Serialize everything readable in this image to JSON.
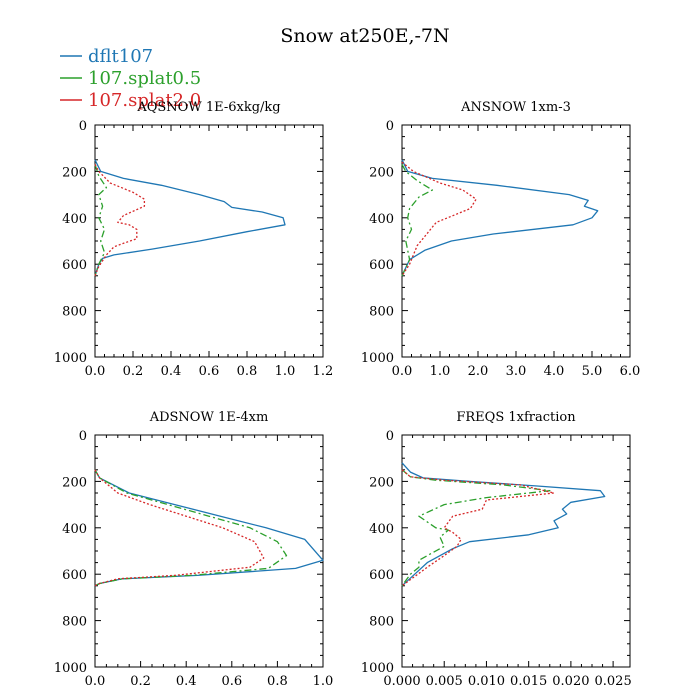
{
  "title": "Snow at250E,-7N",
  "legend": [
    {
      "label": "dflt107",
      "color": "#1f77b4",
      "dash": "solid"
    },
    {
      "label": "107.splat0.5",
      "color": "#2ca02c",
      "dash": "dashdot"
    },
    {
      "label": "107.splat2.0",
      "color": "#d62728",
      "dash": "dotted"
    }
  ],
  "chart_data": [
    {
      "type": "line",
      "title": "AQSNOW  1E-6xkg/kg",
      "xlim": [
        0,
        1.2
      ],
      "xticks": [
        "0.0",
        "0.2",
        "0.4",
        "0.6",
        "0.8",
        "1.0",
        "1.2"
      ],
      "ylim": [
        0,
        1000
      ],
      "yticks": [
        "0",
        "200",
        "400",
        "600",
        "800",
        "1000"
      ],
      "y_inverted": true,
      "series": [
        {
          "name": "dflt107",
          "x": [
            0,
            0.03,
            0.15,
            0.35,
            0.55,
            0.68,
            0.72,
            0.88,
            0.99,
            1.0,
            0.8,
            0.55,
            0.3,
            0.1,
            0.04,
            0.02,
            0
          ],
          "y": [
            150,
            200,
            230,
            260,
            300,
            330,
            355,
            375,
            400,
            430,
            460,
            500,
            535,
            560,
            575,
            600,
            650
          ]
        },
        {
          "name": "107.splat0.5",
          "x": [
            0,
            0.02,
            0.06,
            0.02,
            0.04,
            0.02,
            0.05,
            0.03,
            0.05,
            0.02,
            0
          ],
          "y": [
            170,
            220,
            270,
            300,
            350,
            400,
            450,
            500,
            550,
            600,
            650
          ]
        },
        {
          "name": "107.splat2.0",
          "x": [
            0,
            0.02,
            0.08,
            0.2,
            0.26,
            0.26,
            0.15,
            0.12,
            0.18,
            0.22,
            0.22,
            0.15,
            0.1,
            0.06,
            0.02,
            0
          ],
          "y": [
            170,
            200,
            250,
            290,
            320,
            350,
            390,
            420,
            430,
            450,
            490,
            510,
            525,
            560,
            610,
            650
          ]
        }
      ]
    },
    {
      "type": "line",
      "title": "ANSNOW  1xm-3",
      "xlim": [
        0,
        6
      ],
      "xticks": [
        "0.0",
        "1.0",
        "2.0",
        "3.0",
        "4.0",
        "5.0",
        "6.0"
      ],
      "ylim": [
        0,
        1000
      ],
      "yticks": [
        "0",
        "200",
        "400",
        "600",
        "800",
        "1000"
      ],
      "y_inverted": true,
      "series": [
        {
          "name": "dflt107",
          "x": [
            0,
            0.15,
            0.8,
            2.5,
            4.4,
            4.9,
            4.8,
            5.15,
            5.0,
            4.5,
            2.4,
            1.3,
            0.6,
            0.2,
            0
          ],
          "y": [
            150,
            200,
            230,
            260,
            300,
            325,
            350,
            370,
            400,
            430,
            470,
            500,
            540,
            580,
            650
          ]
        },
        {
          "name": "107.splat0.5",
          "x": [
            0,
            0.1,
            0.4,
            0.8,
            0.45,
            0.2,
            0.15,
            0.25,
            0.1,
            0.2,
            0
          ],
          "y": [
            170,
            200,
            240,
            280,
            310,
            360,
            400,
            450,
            500,
            580,
            650
          ]
        },
        {
          "name": "107.splat2.0",
          "x": [
            0,
            0.3,
            1.0,
            1.6,
            1.95,
            1.8,
            1.2,
            0.9,
            0.75,
            0.6,
            0.4,
            0.3,
            0.2,
            0
          ],
          "y": [
            160,
            200,
            250,
            280,
            320,
            360,
            400,
            420,
            450,
            480,
            520,
            560,
            600,
            650
          ]
        }
      ]
    },
    {
      "type": "line",
      "title": "ADSNOW  1E-4xm",
      "xlim": [
        0,
        1.0
      ],
      "xticks": [
        "0.0",
        "0.2",
        "0.4",
        "0.6",
        "0.8",
        "1.0"
      ],
      "ylim": [
        0,
        1000
      ],
      "yticks": [
        "0",
        "200",
        "400",
        "600",
        "800",
        "1000"
      ],
      "y_inverted": true,
      "series": [
        {
          "name": "dflt107",
          "x": [
            0,
            0.02,
            0.15,
            0.35,
            0.55,
            0.75,
            0.92,
            1.0,
            0.88,
            0.45,
            0.12,
            0.02,
            0
          ],
          "y": [
            150,
            185,
            250,
            300,
            350,
            400,
            450,
            540,
            575,
            605,
            620,
            640,
            650
          ]
        },
        {
          "name": "107.splat0.5",
          "x": [
            0,
            0.02,
            0.14,
            0.32,
            0.5,
            0.68,
            0.8,
            0.84,
            0.76,
            0.42,
            0.12,
            0.02,
            0
          ],
          "y": [
            150,
            185,
            250,
            300,
            350,
            400,
            460,
            520,
            575,
            605,
            620,
            640,
            650
          ]
        },
        {
          "name": "107.splat2.0",
          "x": [
            0,
            0.02,
            0.1,
            0.24,
            0.4,
            0.56,
            0.7,
            0.74,
            0.68,
            0.35,
            0.1,
            0.02,
            0
          ],
          "y": [
            150,
            185,
            250,
            300,
            350,
            400,
            460,
            530,
            570,
            605,
            620,
            640,
            650
          ]
        }
      ]
    },
    {
      "type": "line",
      "title": "FREQS  1xfraction",
      "xlim": [
        0,
        0.027
      ],
      "xticks": [
        "0.000",
        "0.005",
        "0.010",
        "0.015",
        "0.020",
        "0.025"
      ],
      "ylim": [
        0,
        1000
      ],
      "yticks": [
        "0",
        "200",
        "400",
        "600",
        "800",
        "1000"
      ],
      "y_inverted": true,
      "series": [
        {
          "name": "dflt107",
          "x": [
            0,
            0.001,
            0.0025,
            0.008,
            0.016,
            0.0235,
            0.024,
            0.02,
            0.019,
            0.0195,
            0.018,
            0.0185,
            0.015,
            0.008,
            0.006,
            0.003,
            0.0015,
            0
          ],
          "y": [
            120,
            160,
            185,
            200,
            220,
            240,
            265,
            290,
            320,
            340,
            370,
            400,
            430,
            460,
            490,
            550,
            600,
            650
          ]
        },
        {
          "name": "107.splat0.5",
          "x": [
            0,
            0.001,
            0.004,
            0.012,
            0.0175,
            0.01,
            0.005,
            0.002,
            0.004,
            0.0055,
            0.0045,
            0.005,
            0.003,
            0.002,
            0.002,
            0.001,
            0
          ],
          "y": [
            150,
            180,
            195,
            215,
            240,
            270,
            300,
            350,
            400,
            410,
            440,
            480,
            520,
            540,
            570,
            600,
            650
          ]
        },
        {
          "name": "107.splat2.0",
          "x": [
            0,
            0.001,
            0.005,
            0.014,
            0.018,
            0.01,
            0.0095,
            0.006,
            0.005,
            0.006,
            0.007,
            0.0065,
            0.005,
            0.003,
            0.0015,
            0
          ],
          "y": [
            150,
            180,
            195,
            215,
            250,
            280,
            320,
            350,
            400,
            420,
            450,
            480,
            520,
            570,
            610,
            650
          ]
        }
      ]
    }
  ]
}
